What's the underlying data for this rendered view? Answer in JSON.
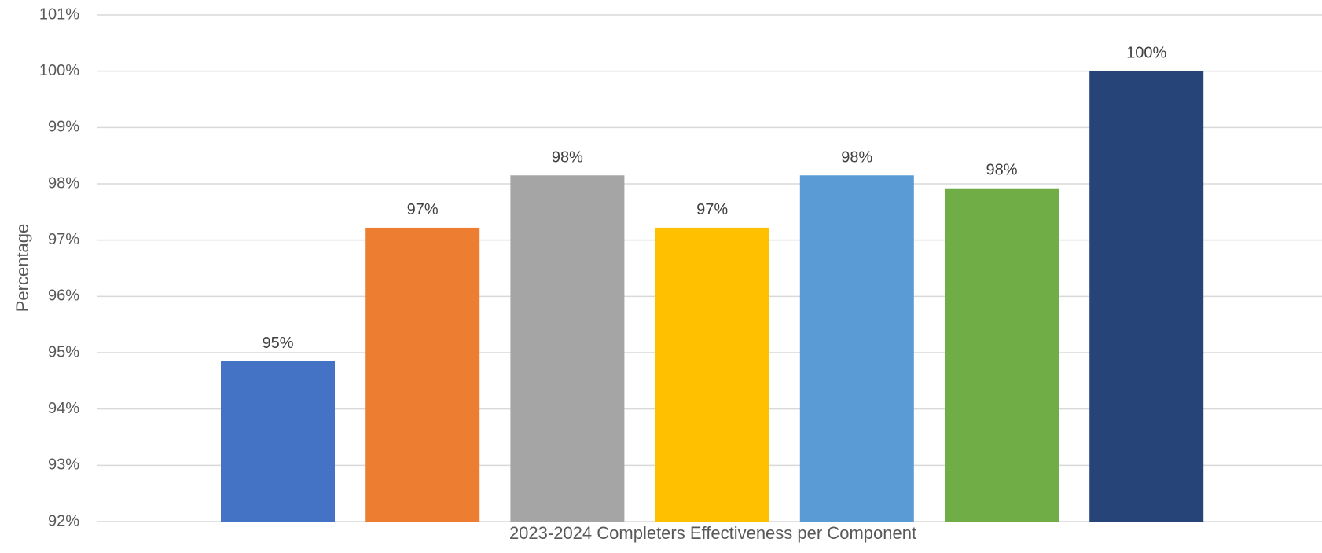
{
  "chart_data": {
    "type": "bar",
    "title": "",
    "xlabel": "2023-2024 Completers Effectiveness per Component",
    "ylabel": "Percentage",
    "ylim": [
      92,
      101
    ],
    "y_ticks": [
      92,
      93,
      94,
      95,
      96,
      97,
      98,
      99,
      100,
      101
    ],
    "y_tick_labels": [
      "92%",
      "93%",
      "94%",
      "95%",
      "96%",
      "97%",
      "98%",
      "99%",
      "100%",
      "101%"
    ],
    "grid": true,
    "legend": "none",
    "categories": [
      "",
      "",
      "",
      "",
      "",
      "",
      ""
    ],
    "values": [
      94.85,
      97.22,
      98.15,
      97.22,
      98.15,
      97.92,
      100.0
    ],
    "data_labels": [
      "95%",
      "97%",
      "98%",
      "97%",
      "98%",
      "98%",
      "100%"
    ],
    "colors": [
      "#4472c4",
      "#ed7d31",
      "#a5a5a5",
      "#ffc000",
      "#5b9bd5",
      "#70ad47",
      "#264478"
    ]
  }
}
